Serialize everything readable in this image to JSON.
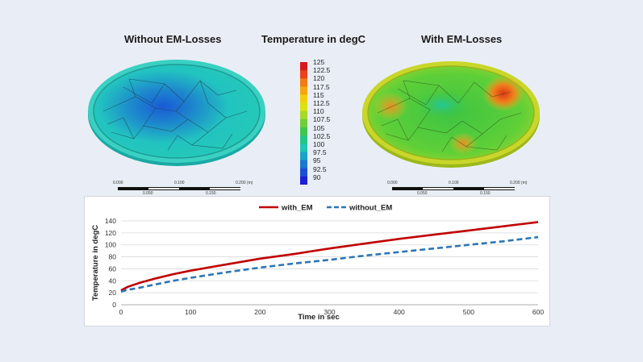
{
  "figure": {
    "left_title": "Without EM-Losses",
    "middle_title": "Temperature in degC",
    "right_title": "With EM-Losses"
  },
  "colorbar": {
    "labels": [
      "125",
      "122.5",
      "120",
      "117.5",
      "115",
      "112.5",
      "110",
      "107.5",
      "105",
      "102.5",
      "100",
      "97.5",
      "95",
      "92.5",
      "90"
    ],
    "colors": [
      "#d7191c",
      "#e8431b",
      "#f07c14",
      "#f5a60c",
      "#f2cf0b",
      "#d9e214",
      "#a6d92a",
      "#6fce3a",
      "#3fc64f",
      "#22c788",
      "#1fc6b2",
      "#1aa3c8",
      "#1a78cf",
      "#1a4fd3",
      "#1a1fd8"
    ]
  },
  "scale_bar": {
    "ticks_top": [
      "0.000",
      "0.100",
      "0.200 (m)"
    ],
    "ticks_bottom": [
      "0.050",
      "0.150"
    ]
  },
  "chart_data": {
    "type": "line",
    "xlabel": "Time in sec",
    "ylabel": "Temperature in degC",
    "xlim": [
      0,
      600
    ],
    "ylim": [
      0,
      140
    ],
    "xticks": [
      0,
      100,
      200,
      300,
      400,
      500,
      600
    ],
    "yticks": [
      0,
      20,
      40,
      60,
      80,
      100,
      120,
      140
    ],
    "grid": "horizontal",
    "legend_position": "top-center",
    "series": [
      {
        "name": "with_EM",
        "color": "#c00000",
        "dash": "solid",
        "x": [
          0,
          10,
          25,
          50,
          75,
          100,
          150,
          200,
          250,
          300,
          350,
          400,
          450,
          500,
          550,
          600
        ],
        "values": [
          24,
          30,
          36,
          44,
          51,
          57,
          67,
          77,
          85,
          94,
          102,
          110,
          117,
          124,
          131,
          138
        ]
      },
      {
        "name": "without_EM",
        "color": "#2e75b6",
        "dash": "dashed",
        "x": [
          0,
          10,
          25,
          50,
          75,
          100,
          150,
          200,
          250,
          300,
          350,
          400,
          450,
          500,
          550,
          600
        ],
        "values": [
          22,
          25,
          28,
          34,
          40,
          45,
          54,
          62,
          69,
          75,
          82,
          88,
          94,
          100,
          106,
          113
        ]
      }
    ]
  }
}
